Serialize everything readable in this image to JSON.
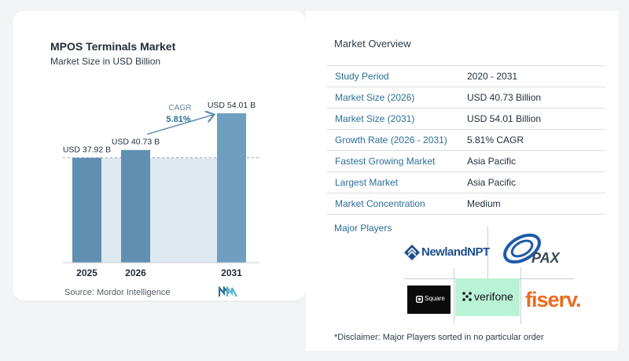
{
  "chart_data": {
    "type": "bar",
    "title": "MPOS Terminals Market",
    "subtitle": "Market Size in USD Billion",
    "categories": [
      "2025",
      "2026",
      "2031"
    ],
    "values": [
      37.92,
      40.73,
      54.01
    ],
    "value_labels": [
      "USD 37.92 B",
      "USD 40.73 B",
      "USD 54.01 B"
    ],
    "cagr_label": "CAGR",
    "cagr_value": "5.81%",
    "grid": false,
    "ylim": [
      0,
      60
    ]
  },
  "source": "Source:  Mordor Intelligence",
  "overview": {
    "title": "Market Overview",
    "rows": [
      {
        "label": "Study Period",
        "value": "2020 - 2031"
      },
      {
        "label": "Market Size (2026)",
        "value": "USD 40.73 Billion"
      },
      {
        "label": "Market Size (2031)",
        "value": "USD 54.01 Billion"
      },
      {
        "label": "Growth Rate (2026 - 2031)",
        "value": "5.81% CAGR"
      },
      {
        "label": "Fastest Growing Market",
        "value": "Asia Pacific"
      },
      {
        "label": "Largest Market",
        "value": "Asia Pacific"
      },
      {
        "label": "Market Concentration",
        "value": "Medium"
      }
    ],
    "major_players_title": "Major Players",
    "players": [
      "NewlandNPT",
      "PAX",
      "Square",
      "verifone",
      "fiserv."
    ],
    "disclaimer": "*Disclaimer: Major Players sorted in no particular order"
  },
  "colors": {
    "bar": "#5f8fb1",
    "bar_light": "#6f9fc0",
    "shade": "#dfe9f1",
    "accent": "#2b6f96",
    "verifone_bg": "#b9f3d6",
    "fiserv": "#ee6a1f"
  }
}
